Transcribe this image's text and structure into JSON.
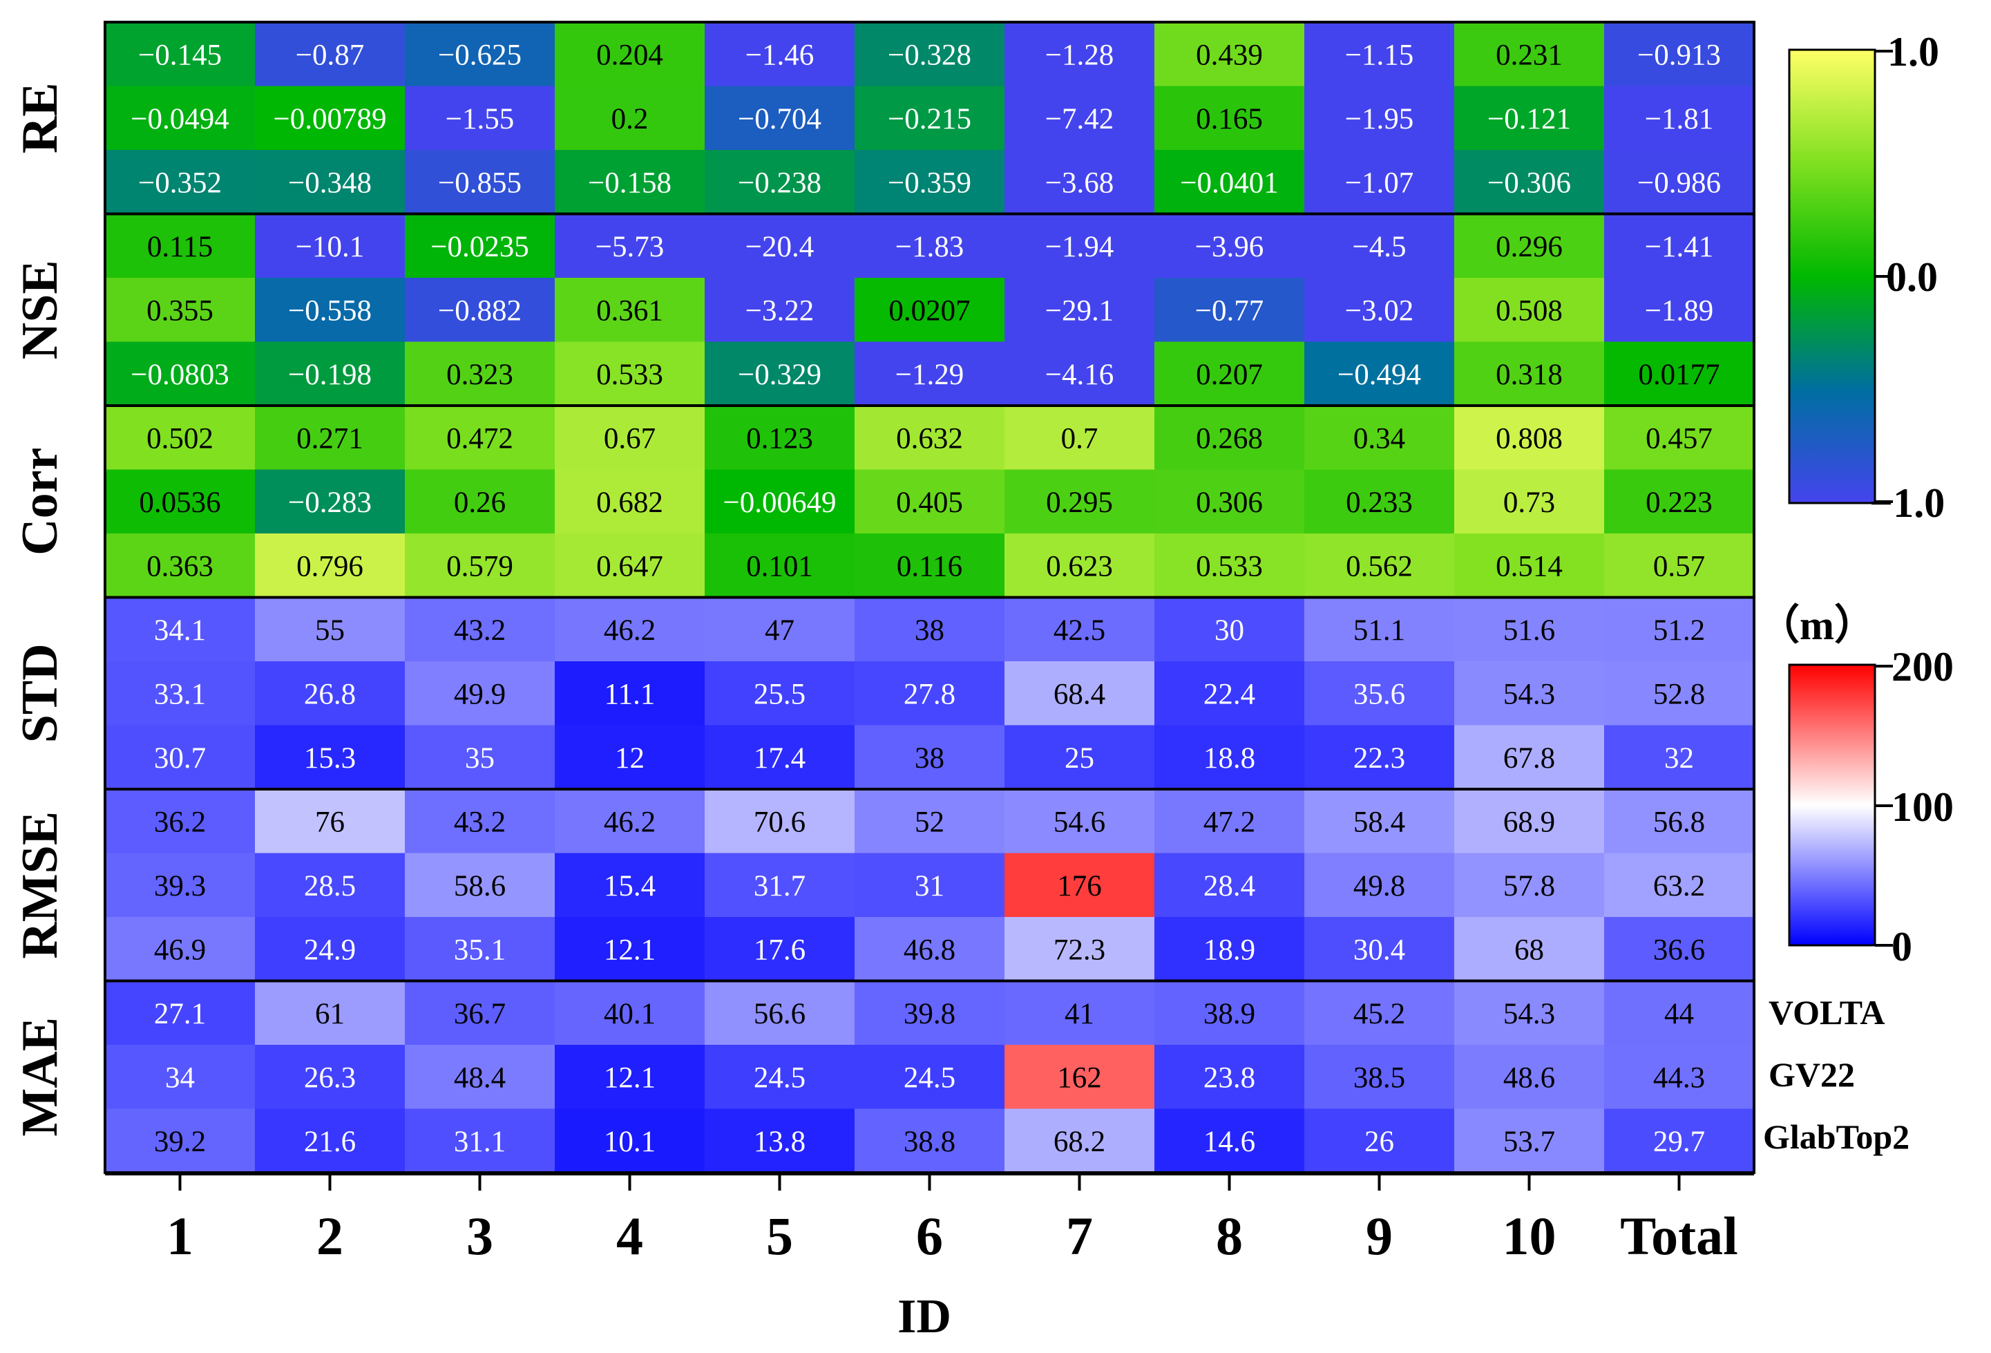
{
  "chart_data": {
    "type": "heatmap",
    "xlabel": "ID",
    "categories": [
      "1",
      "2",
      "3",
      "4",
      "5",
      "6",
      "7",
      "8",
      "9",
      "10",
      "Total"
    ],
    "models": [
      "VOLTA",
      "GV22",
      "GlabTop2"
    ],
    "unit_label": "（m）",
    "groups": [
      {
        "metric": "RE",
        "scale": "diverging",
        "rows": [
          [
            "−0.145",
            "−0.87",
            "−0.625",
            "0.204",
            "−1.46",
            "−0.328",
            "−1.28",
            "0.439",
            "−1.15",
            "0.231",
            "−0.913"
          ],
          [
            "−0.0494",
            "−0.00789",
            "−1.55",
            "0.2",
            "−0.704",
            "−0.215",
            "−7.42",
            "0.165",
            "−1.95",
            "−0.121",
            "−1.81"
          ],
          [
            "−0.352",
            "−0.348",
            "−0.855",
            "−0.158",
            "−0.238",
            "−0.359",
            "−3.68",
            "−0.0401",
            "−1.07",
            "−0.306",
            "−0.986"
          ]
        ]
      },
      {
        "metric": "NSE",
        "scale": "diverging",
        "rows": [
          [
            "0.115",
            "−10.1",
            "−0.0235",
            "−5.73",
            "−20.4",
            "−1.83",
            "−1.94",
            "−3.96",
            "−4.5",
            "0.296",
            "−1.41"
          ],
          [
            "0.355",
            "−0.558",
            "−0.882",
            "0.361",
            "−3.22",
            "0.0207",
            "−29.1",
            "−0.77",
            "−3.02",
            "0.508",
            "−1.89"
          ],
          [
            "−0.0803",
            "−0.198",
            "0.323",
            "0.533",
            "−0.329",
            "−1.29",
            "−4.16",
            "0.207",
            "−0.494",
            "0.318",
            "0.0177"
          ]
        ]
      },
      {
        "metric": "Corr",
        "scale": "diverging",
        "rows": [
          [
            "0.502",
            "0.271",
            "0.472",
            "0.67",
            "0.123",
            "0.632",
            "0.7",
            "0.268",
            "0.34",
            "0.808",
            "0.457"
          ],
          [
            "0.0536",
            "−0.283",
            "0.26",
            "0.682",
            "−0.00649",
            "0.405",
            "0.295",
            "0.306",
            "0.233",
            "0.73",
            "0.223"
          ],
          [
            "0.363",
            "0.796",
            "0.579",
            "0.647",
            "0.101",
            "0.116",
            "0.623",
            "0.533",
            "0.562",
            "0.514",
            "0.57"
          ]
        ]
      },
      {
        "metric": "STD",
        "scale": "meters",
        "rows": [
          [
            "34.1",
            "55",
            "43.2",
            "46.2",
            "47",
            "38",
            "42.5",
            "30",
            "51.1",
            "51.6",
            "51.2"
          ],
          [
            "33.1",
            "26.8",
            "49.9",
            "11.1",
            "25.5",
            "27.8",
            "68.4",
            "22.4",
            "35.6",
            "54.3",
            "52.8"
          ],
          [
            "30.7",
            "15.3",
            "35",
            "12",
            "17.4",
            "38",
            "25",
            "18.8",
            "22.3",
            "67.8",
            "32"
          ]
        ]
      },
      {
        "metric": "RMSE",
        "scale": "meters",
        "rows": [
          [
            "36.2",
            "76",
            "43.2",
            "46.2",
            "70.6",
            "52",
            "54.6",
            "47.2",
            "58.4",
            "68.9",
            "56.8"
          ],
          [
            "39.3",
            "28.5",
            "58.6",
            "15.4",
            "31.7",
            "31",
            "176",
            "28.4",
            "49.8",
            "57.8",
            "63.2"
          ],
          [
            "46.9",
            "24.9",
            "35.1",
            "12.1",
            "17.6",
            "46.8",
            "72.3",
            "18.9",
            "30.4",
            "68",
            "36.6"
          ]
        ]
      },
      {
        "metric": "MAE",
        "scale": "meters",
        "rows": [
          [
            "27.1",
            "61",
            "36.7",
            "40.1",
            "56.6",
            "39.8",
            "41",
            "38.9",
            "45.2",
            "54.3",
            "44"
          ],
          [
            "34",
            "26.3",
            "48.4",
            "12.1",
            "24.5",
            "24.5",
            "162",
            "23.8",
            "38.5",
            "48.6",
            "44.3"
          ],
          [
            "39.2",
            "21.6",
            "31.1",
            "10.1",
            "13.8",
            "38.8",
            "68.2",
            "14.6",
            "26",
            "53.7",
            "29.7"
          ]
        ]
      }
    ],
    "colorbars": [
      {
        "name": "diverging",
        "range": [
          -1.0,
          1.0
        ],
        "tick_labels": [
          "1.0",
          "0.0",
          "−1.0"
        ],
        "colors": [
          "#4444ee",
          "#006fa0",
          "#00b800",
          "#80e020",
          "#ffff66"
        ]
      },
      {
        "name": "meters",
        "range": [
          0,
          200
        ],
        "tick_labels": [
          "200",
          "100",
          "0"
        ],
        "colors": [
          "#0000ff",
          "#ffffff",
          "#ff0000"
        ]
      }
    ]
  }
}
